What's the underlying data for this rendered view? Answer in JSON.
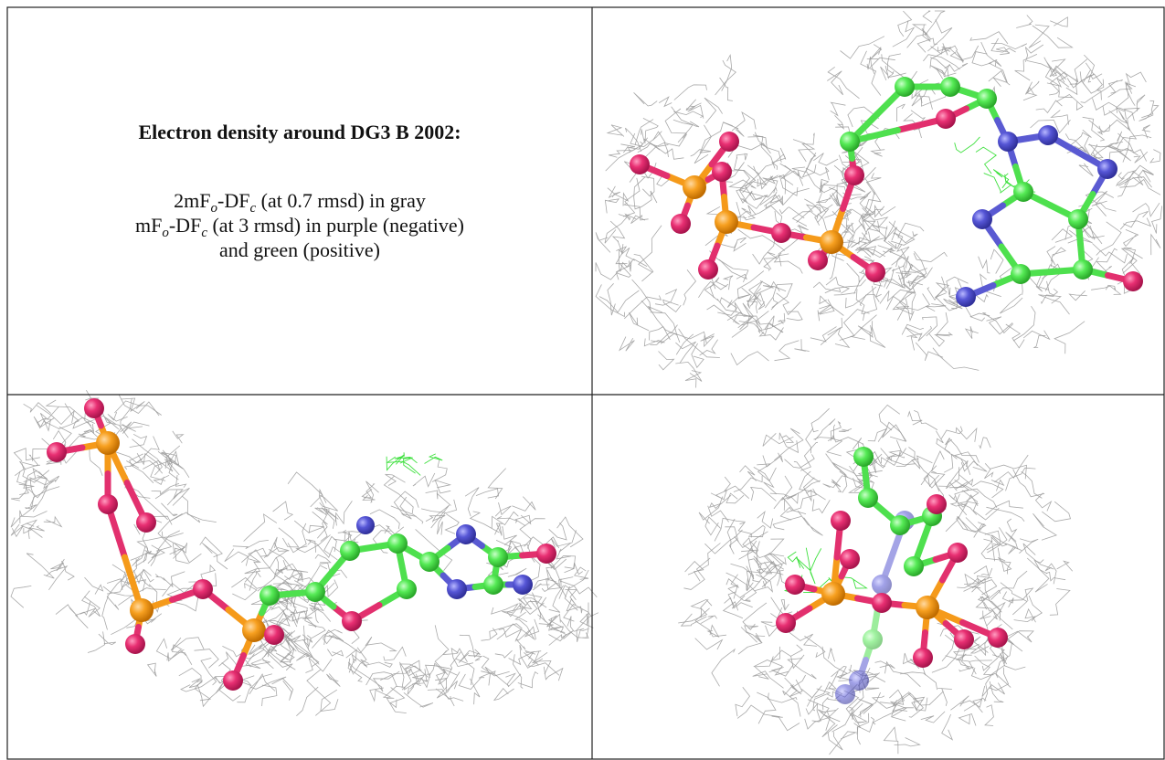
{
  "figure": {
    "title": "Electron density around DG3 B 2002:",
    "caption": [
      [
        "2mF",
        "o",
        "-DF",
        "c",
        " (at 0.7 rmsd) in gray"
      ],
      [
        "mF",
        "o",
        "-DF",
        "c",
        " (at 3 rmsd) in purple (negative)"
      ],
      [
        "and green (positive)"
      ]
    ]
  }
}
